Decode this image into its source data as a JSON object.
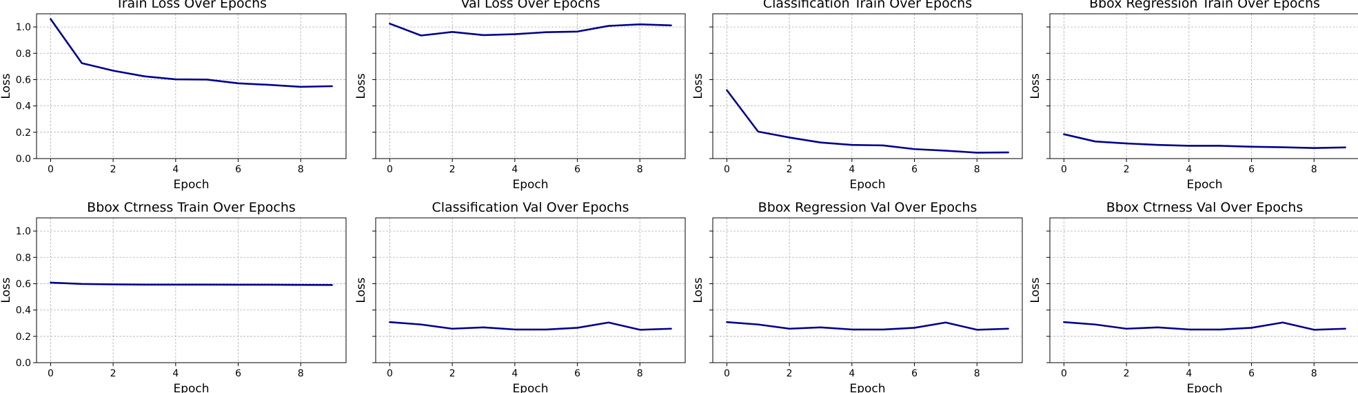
{
  "chart_data": [
    {
      "type": "line",
      "title": "Train Loss Over Epochs",
      "xlabel": "Epoch",
      "ylabel": "Loss",
      "x": [
        0,
        1,
        2,
        3,
        4,
        5,
        6,
        7,
        8,
        9
      ],
      "series": [
        {
          "values": [
            1.06,
            0.725,
            0.668,
            0.625,
            0.602,
            0.6,
            0.572,
            0.56,
            0.545,
            0.55
          ]
        }
      ],
      "xlim": [
        -0.45,
        9.45
      ],
      "ylim": [
        0,
        1.1
      ],
      "xticks": [
        0,
        2,
        4,
        6,
        8
      ],
      "yticks": [
        0.0,
        0.2,
        0.4,
        0.6,
        0.8,
        1.0
      ],
      "ytick_labels": [
        "0.0",
        "0.2",
        "0.4",
        "0.6",
        "0.8",
        "1.0"
      ],
      "grid": true,
      "color": "#00008b"
    },
    {
      "type": "line",
      "title": "Val Loss Over Epochs",
      "xlabel": "Epoch",
      "ylabel": "Loss",
      "x": [
        0,
        1,
        2,
        3,
        4,
        5,
        6,
        7,
        8,
        9
      ],
      "series": [
        {
          "values": [
            1.025,
            0.935,
            0.962,
            0.938,
            0.945,
            0.96,
            0.965,
            1.008,
            1.02,
            1.012
          ]
        }
      ],
      "xlim": [
        -0.45,
        9.45
      ],
      "ylim": [
        0,
        1.1
      ],
      "xticks": [
        0,
        2,
        4,
        6,
        8
      ],
      "yticks": [
        0.0,
        0.2,
        0.4,
        0.6,
        0.8,
        1.0
      ],
      "ytick_labels": [],
      "grid": true,
      "color": "#00008b"
    },
    {
      "type": "line",
      "title": "Classification Train Over Epochs",
      "xlabel": "Epoch",
      "ylabel": "Loss",
      "x": [
        0,
        1,
        2,
        3,
        4,
        5,
        6,
        7,
        8,
        9
      ],
      "series": [
        {
          "values": [
            0.52,
            0.205,
            0.16,
            0.122,
            0.104,
            0.1,
            0.072,
            0.06,
            0.045,
            0.047
          ]
        }
      ],
      "xlim": [
        -0.45,
        9.45
      ],
      "ylim": [
        0,
        1.1
      ],
      "xticks": [
        0,
        2,
        4,
        6,
        8
      ],
      "yticks": [
        0.0,
        0.2,
        0.4,
        0.6,
        0.8,
        1.0
      ],
      "ytick_labels": [],
      "grid": true,
      "color": "#00008b"
    },
    {
      "type": "line",
      "title": "Bbox Regression Train Over Epochs",
      "xlabel": "Epoch",
      "ylabel": "Loss",
      "x": [
        0,
        1,
        2,
        3,
        4,
        5,
        6,
        7,
        8,
        9
      ],
      "series": [
        {
          "values": [
            0.185,
            0.13,
            0.115,
            0.104,
            0.097,
            0.097,
            0.09,
            0.086,
            0.08,
            0.085
          ]
        }
      ],
      "xlim": [
        -0.45,
        9.45
      ],
      "ylim": [
        0,
        1.1
      ],
      "xticks": [
        0,
        2,
        4,
        6,
        8
      ],
      "yticks": [
        0.0,
        0.2,
        0.4,
        0.6,
        0.8,
        1.0
      ],
      "ytick_labels": [],
      "grid": true,
      "color": "#00008b"
    },
    {
      "type": "line",
      "title": "Bbox Ctrness Train Over Epochs",
      "xlabel": "Epoch",
      "ylabel": "Loss",
      "x": [
        0,
        1,
        2,
        3,
        4,
        5,
        6,
        7,
        8,
        9
      ],
      "series": [
        {
          "values": [
            0.608,
            0.598,
            0.595,
            0.593,
            0.593,
            0.593,
            0.592,
            0.592,
            0.591,
            0.59
          ]
        }
      ],
      "xlim": [
        -0.45,
        9.45
      ],
      "ylim": [
        0,
        1.1
      ],
      "xticks": [
        0,
        2,
        4,
        6,
        8
      ],
      "yticks": [
        0.0,
        0.2,
        0.4,
        0.6,
        0.8,
        1.0
      ],
      "ytick_labels": [
        "0.0",
        "0.2",
        "0.4",
        "0.6",
        "0.8",
        "1.0"
      ],
      "grid": true,
      "color": "#00008b"
    },
    {
      "type": "line",
      "title": "Classification Val Over Epochs",
      "xlabel": "Epoch",
      "ylabel": "Loss",
      "x": [
        0,
        1,
        2,
        3,
        4,
        5,
        6,
        7,
        8,
        9
      ],
      "series": [
        {
          "values": [
            0.308,
            0.29,
            0.258,
            0.268,
            0.252,
            0.252,
            0.265,
            0.305,
            0.25,
            0.258
          ]
        }
      ],
      "xlim": [
        -0.45,
        9.45
      ],
      "ylim": [
        0,
        1.1
      ],
      "xticks": [
        0,
        2,
        4,
        6,
        8
      ],
      "yticks": [
        0.0,
        0.2,
        0.4,
        0.6,
        0.8,
        1.0
      ],
      "ytick_labels": [],
      "grid": true,
      "color": "#00008b"
    },
    {
      "type": "line",
      "title": "Bbox Regression Val Over Epochs",
      "xlabel": "Epoch",
      "ylabel": "Loss",
      "x": [
        0,
        1,
        2,
        3,
        4,
        5,
        6,
        7,
        8,
        9
      ],
      "series": [
        {
          "values": [
            0.308,
            0.29,
            0.258,
            0.268,
            0.252,
            0.252,
            0.265,
            0.305,
            0.25,
            0.258
          ]
        }
      ],
      "xlim": [
        -0.45,
        9.45
      ],
      "ylim": [
        0,
        1.1
      ],
      "xticks": [
        0,
        2,
        4,
        6,
        8
      ],
      "yticks": [
        0.0,
        0.2,
        0.4,
        0.6,
        0.8,
        1.0
      ],
      "ytick_labels": [],
      "grid": true,
      "color": "#00008b"
    },
    {
      "type": "line",
      "title": "Bbox Ctrness Val Over Epochs",
      "xlabel": "Epoch",
      "ylabel": "Loss",
      "x": [
        0,
        1,
        2,
        3,
        4,
        5,
        6,
        7,
        8,
        9
      ],
      "series": [
        {
          "values": [
            0.308,
            0.29,
            0.258,
            0.268,
            0.252,
            0.252,
            0.265,
            0.305,
            0.25,
            0.258
          ]
        }
      ],
      "xlim": [
        -0.45,
        9.45
      ],
      "ylim": [
        0,
        1.1
      ],
      "xticks": [
        0,
        2,
        4,
        6,
        8
      ],
      "yticks": [
        0.0,
        0.2,
        0.4,
        0.6,
        0.8,
        1.0
      ],
      "ytick_labels": [],
      "grid": true,
      "color": "#00008b"
    }
  ]
}
